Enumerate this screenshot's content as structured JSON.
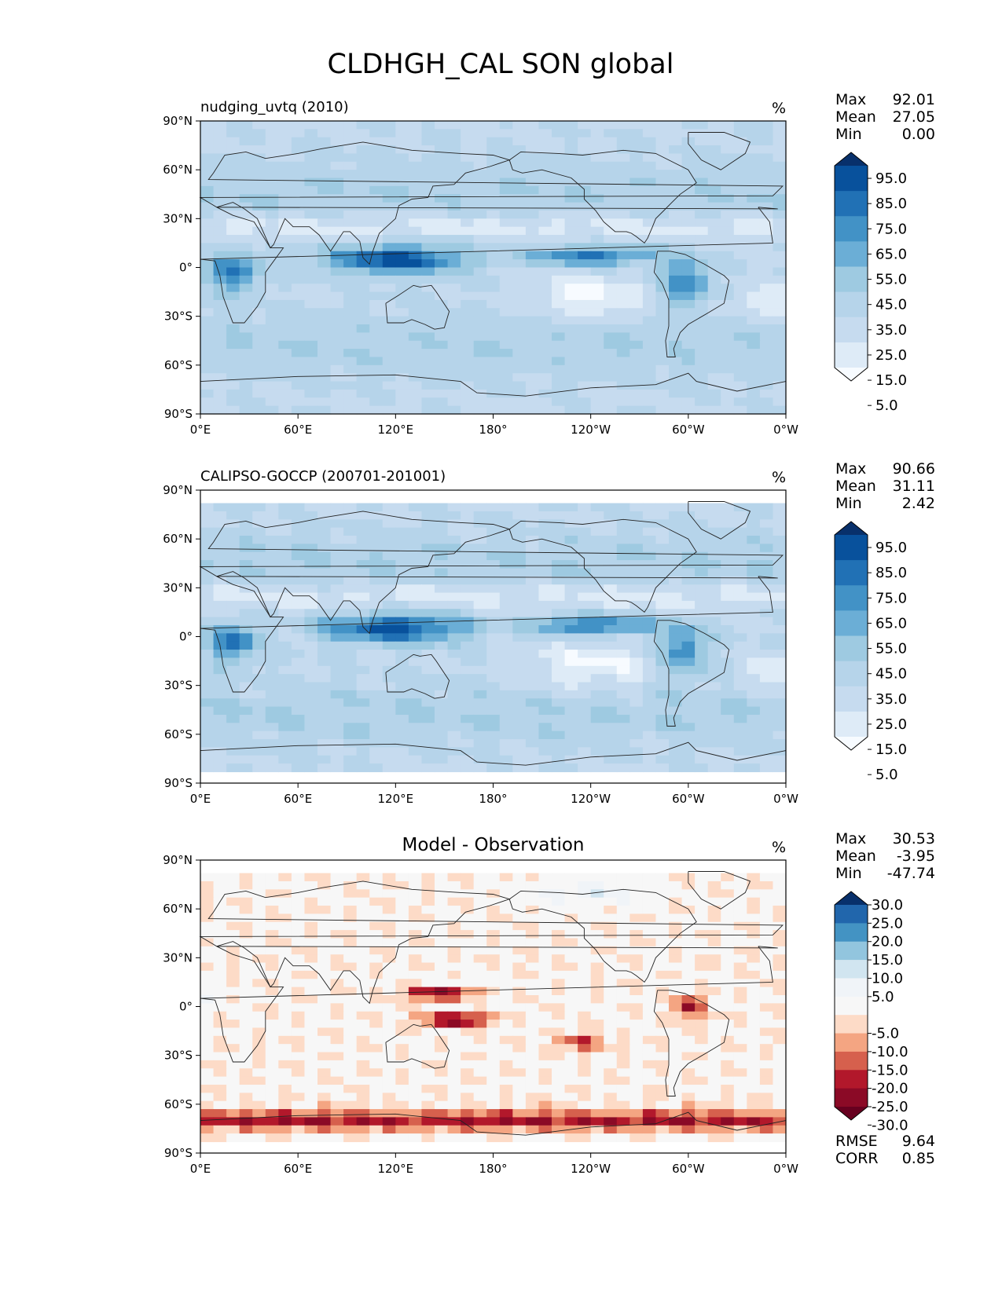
{
  "figure_title": "CLDHGH_CAL SON global",
  "lat_tick_labels": [
    "90°N",
    "60°N",
    "30°N",
    "0°",
    "30°S",
    "60°S",
    "90°S"
  ],
  "lon_tick_labels": [
    "0°E",
    "60°E",
    "120°E",
    "180°",
    "120°W",
    "60°W",
    "0°W"
  ],
  "chart_data": [
    {
      "type": "heatmap",
      "panel": "model",
      "title": "nudging_uvtq (2010)",
      "units": "%",
      "xlim": [
        0,
        360
      ],
      "ylim": [
        -90,
        90
      ],
      "stats": [
        {
          "label": "Max",
          "value": "92.01"
        },
        {
          "label": "Mean",
          "value": "27.05"
        },
        {
          "label": "Min",
          "value": "0.00"
        }
      ],
      "colorbar": {
        "labels": [
          "95.0",
          "85.0",
          "75.0",
          "65.0",
          "55.0",
          "45.0",
          "35.0",
          "25.0",
          "15.0",
          "5.0"
        ],
        "colors": [
          "#08306b",
          "#08519c",
          "#2171b5",
          "#4292c6",
          "#6baed6",
          "#9ecae1",
          "#b6d4ea",
          "#c6dbef",
          "#deebf7",
          "#f7fbff"
        ]
      }
    },
    {
      "type": "heatmap",
      "panel": "observation",
      "title": "CALIPSO-GOCCP (200701-201001)",
      "units": "%",
      "xlim": [
        0,
        360
      ],
      "ylim": [
        -90,
        90
      ],
      "stats": [
        {
          "label": "Max",
          "value": "90.66"
        },
        {
          "label": "Mean",
          "value": "31.11"
        },
        {
          "label": "Min",
          "value": "2.42"
        }
      ],
      "colorbar": {
        "labels": [
          "95.0",
          "85.0",
          "75.0",
          "65.0",
          "55.0",
          "45.0",
          "35.0",
          "25.0",
          "15.0",
          "5.0"
        ],
        "colors": [
          "#08306b",
          "#08519c",
          "#2171b5",
          "#4292c6",
          "#6baed6",
          "#9ecae1",
          "#b6d4ea",
          "#c6dbef",
          "#deebf7",
          "#f7fbff"
        ]
      }
    },
    {
      "type": "heatmap",
      "panel": "difference",
      "title": "Model - Observation",
      "units": "%",
      "xlim": [
        0,
        360
      ],
      "ylim": [
        -90,
        90
      ],
      "stats": [
        {
          "label": "Max",
          "value": "30.53"
        },
        {
          "label": "Mean",
          "value": "-3.95"
        },
        {
          "label": "Min",
          "value": "-47.74"
        }
      ],
      "extra_stats": [
        {
          "label": "RMSE",
          "value": "9.64"
        },
        {
          "label": "CORR",
          "value": "0.85"
        }
      ],
      "colorbar": {
        "labels": [
          "30.0",
          "25.0",
          "20.0",
          "15.0",
          "10.0",
          "5.0",
          "-5.0",
          "-10.0",
          "-15.0",
          "-20.0",
          "-25.0",
          "-30.0"
        ],
        "colors": [
          "#08306b",
          "#2166ac",
          "#4393c3",
          "#92c5de",
          "#d1e5f0",
          "#f0f4f8",
          "#f7f7f7",
          "#fddbc7",
          "#f4a582",
          "#d6604d",
          "#b2182b",
          "#8b0a26",
          "#67001f"
        ]
      }
    }
  ]
}
